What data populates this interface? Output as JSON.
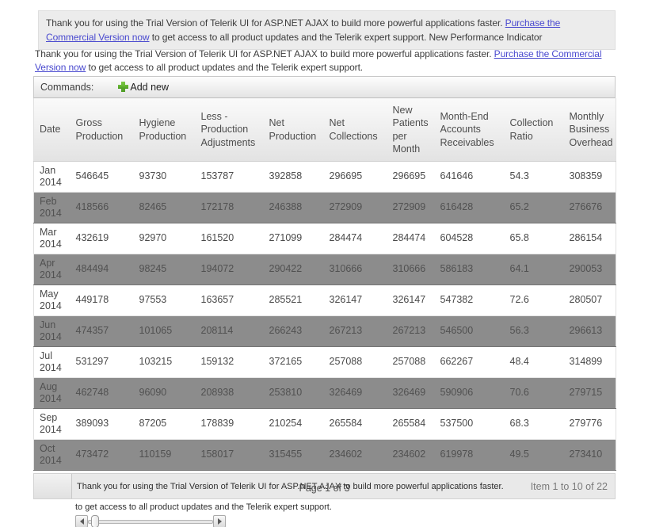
{
  "trial_banner_top": {
    "before_link": "Thank you for using the Trial Version of Telerik UI for ASP.NET AJAX to build more powerful applications faster. ",
    "link_text": "Purchase the Commercial Version now",
    "after_link": " to get access to all product updates and the Telerik expert support. New Performance Indicator"
  },
  "trial_banner_grid": {
    "before_link": "Thank you for using the Trial Version of Telerik UI for ASP.NET AJAX to build more powerful applications faster. ",
    "link_text": "Purchase the Commercial Version now",
    "after_link": " to get access to all product updates and the Telerik expert support."
  },
  "commands_bar": {
    "label": "Commands:",
    "add_new_label": "Add new",
    "add_icon": "plus-icon"
  },
  "table": {
    "columns": [
      "Date",
      "Gross Production",
      "Hygiene Production",
      "Less - Production Adjustments",
      "Net Production",
      "Net Collections",
      "New Patients per Month",
      "Month-End Accounts Receivables",
      "Collection Ratio",
      "Monthly Business Overhead"
    ],
    "rows": [
      [
        "Jan 2014",
        "546645",
        "93730",
        "153787",
        "392858",
        "296695",
        "296695",
        "641646",
        "54.3",
        "308359"
      ],
      [
        "Feb 2014",
        "418566",
        "82465",
        "172178",
        "246388",
        "272909",
        "272909",
        "616428",
        "65.2",
        "276676"
      ],
      [
        "Mar 2014",
        "432619",
        "92970",
        "161520",
        "271099",
        "284474",
        "284474",
        "604528",
        "65.8",
        "286154"
      ],
      [
        "Apr 2014",
        "484494",
        "98245",
        "194072",
        "290422",
        "310666",
        "310666",
        "586183",
        "64.1",
        "290053"
      ],
      [
        "May 2014",
        "449178",
        "97553",
        "163657",
        "285521",
        "326147",
        "326147",
        "547382",
        "72.6",
        "280507"
      ],
      [
        "Jun 2014",
        "474357",
        "101065",
        "208114",
        "266243",
        "267213",
        "267213",
        "546500",
        "56.3",
        "296613"
      ],
      [
        "Jul 2014",
        "531297",
        "103215",
        "159132",
        "372165",
        "257088",
        "257088",
        "662267",
        "48.4",
        "314899"
      ],
      [
        "Aug 2014",
        "462748",
        "96090",
        "208938",
        "253810",
        "326469",
        "326469",
        "590906",
        "70.6",
        "279715"
      ],
      [
        "Sep 2014",
        "389093",
        "87205",
        "178839",
        "210254",
        "265584",
        "265584",
        "537500",
        "68.3",
        "279776"
      ],
      [
        "Oct 2014",
        "473472",
        "110159",
        "158017",
        "315455",
        "234602",
        "234602",
        "619978",
        "49.5",
        "273410"
      ]
    ]
  },
  "pager": {
    "watermark_line1": "Thank you for using the Trial Version of Telerik UI for ASP.NET AJAX to build more powerful applications faster.",
    "watermark_line2": "to get access to all product updates and the Telerik expert support.",
    "page_status": "Page 1 of 3",
    "item_status": "Item 1 to 10 of 22",
    "slider_icons": [
      "left-arrow-icon",
      "right-arrow-icon"
    ]
  },
  "colors": {
    "banner_bg": "#ececec",
    "link": "#4949cf",
    "alt_row_bg": "#8c8c8c",
    "row_text": "#4a4a4a",
    "alt_row_text": "#515151",
    "header_text": "#4d4d4d",
    "pager_bg": "#e9e9e9",
    "add_icon_green": "#55a82c"
  }
}
